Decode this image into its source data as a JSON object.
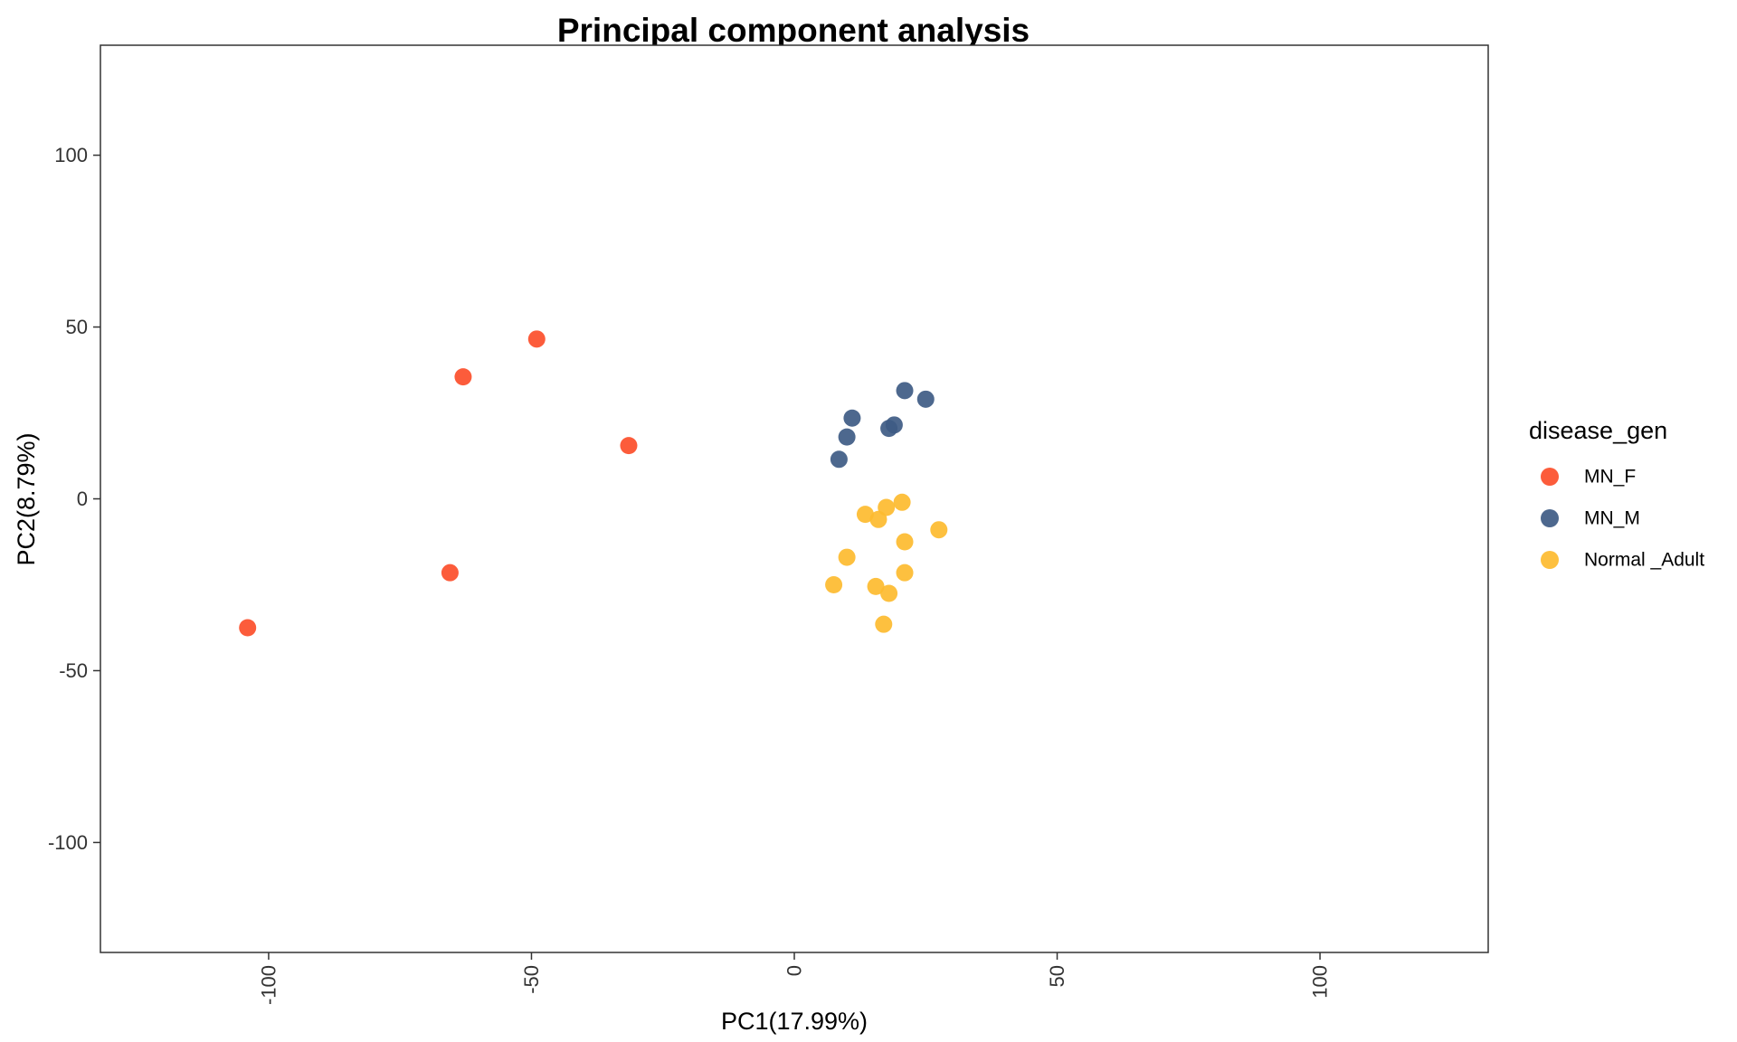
{
  "chart_data": {
    "type": "scatter",
    "title": "Principal component analysis",
    "xlabel": "PC1(17.99%)",
    "ylabel": "PC2(8.79%)",
    "xlim": [
      -132,
      132
    ],
    "ylim": [
      -132,
      132
    ],
    "xticks": [
      -100,
      -50,
      0,
      50,
      100
    ],
    "yticks": [
      -100,
      -50,
      0,
      50,
      100
    ],
    "grid": false,
    "legend_title": "disease_gen",
    "legend_position": "right",
    "series": [
      {
        "name": "MN_F",
        "color": "#FC4E2A",
        "points": [
          [
            -104,
            -37.5
          ],
          [
            -65.5,
            -21.5
          ],
          [
            -63,
            35.5
          ],
          [
            -49,
            46.5
          ],
          [
            -31.5,
            15.5
          ]
        ]
      },
      {
        "name": "MN_M",
        "color": "#3E5B84",
        "points": [
          [
            8.5,
            11.5
          ],
          [
            10,
            18
          ],
          [
            11,
            23.5
          ],
          [
            18,
            20.5
          ],
          [
            19,
            21.5
          ],
          [
            21,
            31.5
          ],
          [
            25,
            29
          ]
        ]
      },
      {
        "name": "Normal _Adult",
        "color": "#FDBB2F",
        "points": [
          [
            7.5,
            -25
          ],
          [
            10,
            -17
          ],
          [
            13.5,
            -4.5
          ],
          [
            15.5,
            -25.5
          ],
          [
            16,
            -6
          ],
          [
            17,
            -36.5
          ],
          [
            17.5,
            -2.5
          ],
          [
            18,
            -27.5
          ],
          [
            20.5,
            -1
          ],
          [
            21,
            -12.5
          ],
          [
            21,
            -21.5
          ],
          [
            27.5,
            -9
          ]
        ]
      }
    ]
  }
}
